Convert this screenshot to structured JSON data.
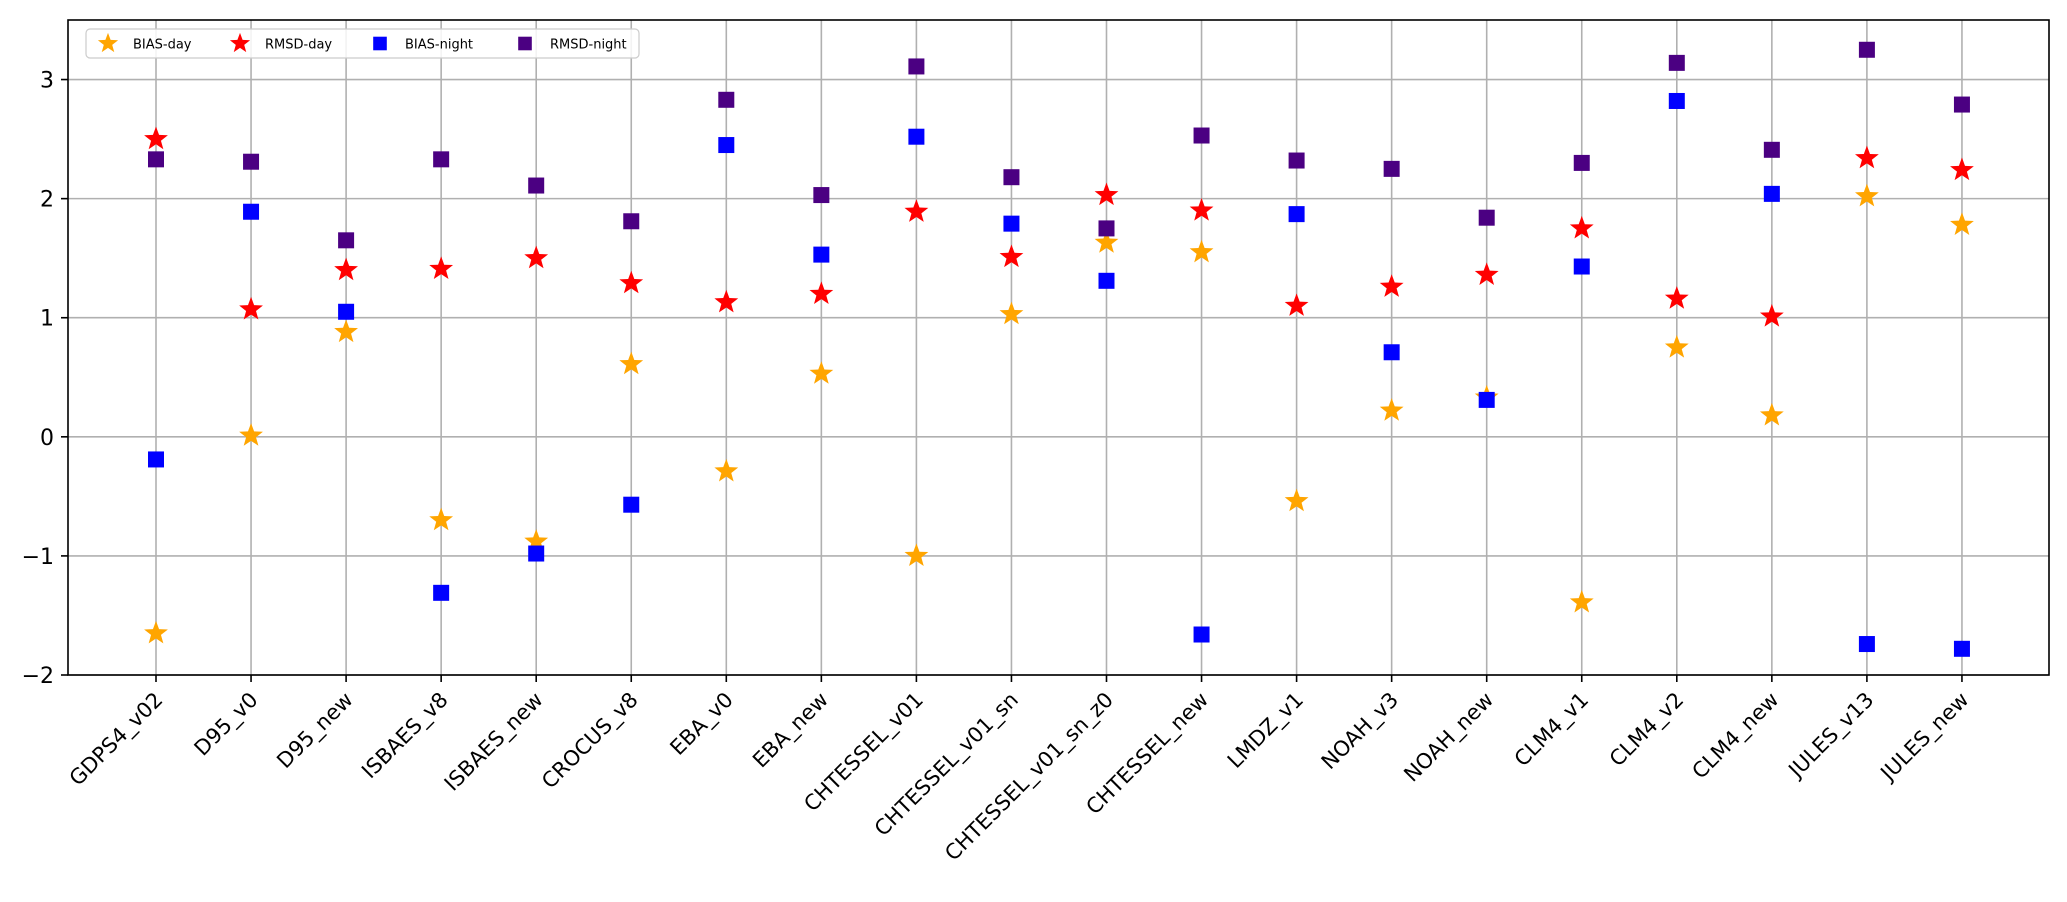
{
  "chart_data": {
    "type": "scatter",
    "title": "",
    "xlabel": "",
    "ylabel": "",
    "ylim": [
      -2,
      3.5
    ],
    "yticks": [
      -2,
      -1,
      0,
      1,
      2,
      3
    ],
    "ytick_labels": [
      "−2",
      "−1",
      "0",
      "1",
      "2",
      "3"
    ],
    "grid": true,
    "legend_position": "upper-left",
    "categories": [
      "GDPS4_v02",
      "D95_v0",
      "D95_new",
      "ISBAES_v8",
      "ISBAES_new",
      "CROCUS_v8",
      "EBA_v0",
      "EBA_new",
      "CHTESSEL_v01",
      "CHTESSEL_v01_sn",
      "CHTESSEL_v01_sn_z0",
      "CHTESSEL_new",
      "LMDZ_v1",
      "NOAH_v3",
      "NOAH_new",
      "CLM4_v1",
      "CLM4_v2",
      "CLM4_new",
      "JULES_v13",
      "JULES_new"
    ],
    "series": [
      {
        "name": "BIAS-day",
        "marker": "star",
        "color": "#FFA500",
        "values": [
          -1.65,
          0.01,
          0.88,
          -0.7,
          -0.88,
          0.61,
          -0.29,
          0.53,
          -1.0,
          1.03,
          1.63,
          1.55,
          -0.54,
          0.22,
          0.33,
          -1.39,
          0.75,
          0.18,
          2.02,
          1.78
        ]
      },
      {
        "name": "RMSD-day",
        "marker": "star",
        "color": "#FF0000",
        "values": [
          2.5,
          1.07,
          1.4,
          1.41,
          1.5,
          1.29,
          1.13,
          1.2,
          1.89,
          1.51,
          2.03,
          1.9,
          1.1,
          1.26,
          1.36,
          1.75,
          1.16,
          1.01,
          2.34,
          2.24
        ]
      },
      {
        "name": "BIAS-night",
        "marker": "square",
        "color": "#0000FF",
        "values": [
          -0.19,
          1.89,
          1.05,
          -1.31,
          -0.98,
          -0.57,
          2.45,
          1.53,
          2.52,
          1.79,
          1.31,
          -1.66,
          1.87,
          0.71,
          0.31,
          1.43,
          2.82,
          2.04,
          -1.74,
          -1.78
        ]
      },
      {
        "name": "RMSD-night",
        "marker": "square",
        "color": "#4B0082",
        "values": [
          2.33,
          2.31,
          1.65,
          2.33,
          2.11,
          1.81,
          2.83,
          2.03,
          3.11,
          2.18,
          1.75,
          2.53,
          2.32,
          2.25,
          1.84,
          2.3,
          3.14,
          2.41,
          3.25,
          2.79
        ]
      }
    ]
  }
}
